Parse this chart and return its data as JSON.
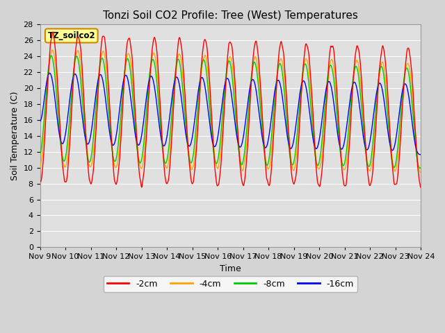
{
  "title": "Tonzi Soil CO2 Profile: Tree (West) Temperatures",
  "xlabel": "Time",
  "ylabel": "Soil Temperature (C)",
  "ylim": [
    0,
    28
  ],
  "yticks": [
    0,
    2,
    4,
    6,
    8,
    10,
    12,
    14,
    16,
    18,
    20,
    22,
    24,
    26,
    28
  ],
  "series_labels": [
    "-2cm",
    "-4cm",
    "-8cm",
    "-16cm"
  ],
  "series_colors": [
    "#ff0000",
    "#ffa500",
    "#00cc00",
    "#0000ff"
  ],
  "fig_bg": "#d4d4d4",
  "plot_bg": "#e0e0e0",
  "legend_label": "TZ_soilco2",
  "legend_bg": "#ffff99",
  "legend_border": "#cc8800",
  "title_fontsize": 11,
  "axis_fontsize": 9,
  "tick_fontsize": 8,
  "n_days": 15,
  "start_day": 9,
  "points_per_day": 96
}
